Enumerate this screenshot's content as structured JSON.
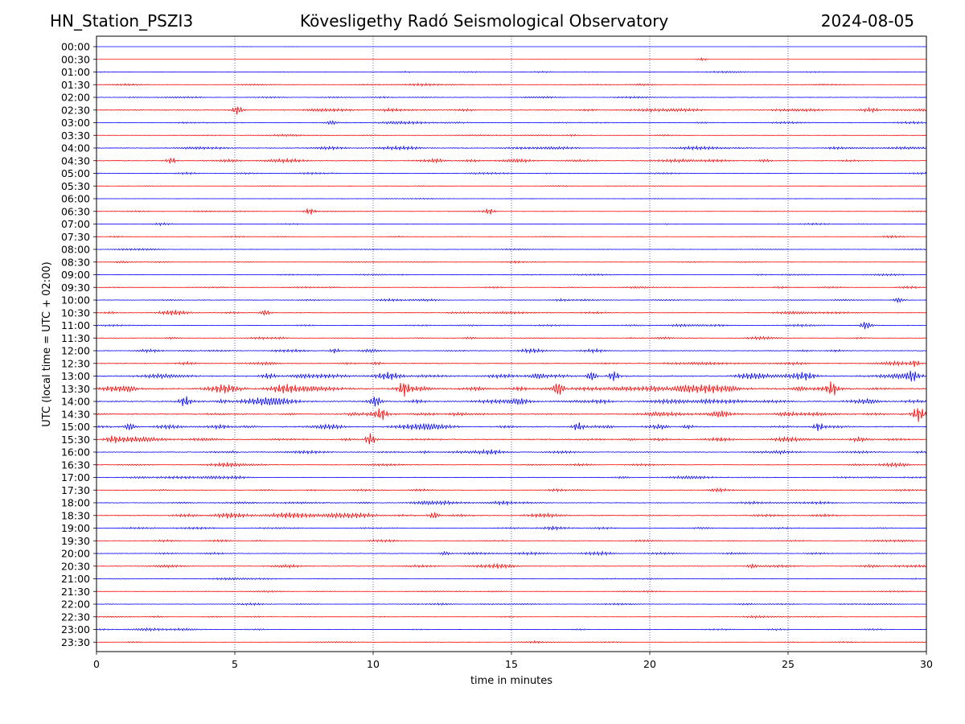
{
  "header": {
    "station": "HN_Station_PSZI3",
    "observatory": "Kövesligethy Radó Seismological Observatory",
    "date": "2024-08-05"
  },
  "chart_data": {
    "type": "line",
    "title": "Kövesligethy Radó Seismological Observatory",
    "xlabel": "time in minutes",
    "ylabel": "UTC (local time = UTC + 02:00)",
    "xlim": [
      0,
      30
    ],
    "xticks": [
      0,
      5,
      10,
      15,
      20,
      25,
      30
    ],
    "grid": "vertical dotted lines at 5-minute ticks",
    "series_colors": [
      "#0000ff",
      "#ff0000"
    ],
    "rows": [
      "00:00",
      "00:30",
      "01:00",
      "01:30",
      "02:00",
      "02:30",
      "03:00",
      "03:30",
      "04:00",
      "04:30",
      "05:00",
      "05:30",
      "06:00",
      "06:30",
      "07:00",
      "07:30",
      "08:00",
      "08:30",
      "09:00",
      "09:30",
      "10:00",
      "10:30",
      "11:00",
      "11:30",
      "12:00",
      "12:30",
      "13:00",
      "13:30",
      "14:00",
      "14:30",
      "15:00",
      "15:30",
      "16:00",
      "16:30",
      "17:00",
      "17:30",
      "18:00",
      "18:30",
      "19:00",
      "19:30",
      "20:00",
      "20:30",
      "21:00",
      "21:30",
      "22:00",
      "22:30",
      "23:00",
      "23:30"
    ],
    "activity": [
      0.05,
      0.08,
      0.55,
      0.7,
      0.8,
      1.3,
      0.9,
      0.65,
      1.2,
      1.2,
      0.75,
      0.45,
      0.3,
      0.5,
      0.6,
      0.55,
      0.6,
      0.6,
      0.7,
      0.85,
      0.9,
      1.0,
      0.9,
      1.0,
      1.1,
      1.3,
      1.9,
      2.3,
      1.9,
      1.8,
      1.7,
      1.6,
      1.2,
      1.0,
      1.0,
      1.0,
      1.1,
      1.4,
      0.9,
      0.9,
      1.0,
      1.0,
      0.6,
      0.7,
      0.8,
      0.65,
      0.7,
      0.6
    ],
    "events": [
      {
        "row": 1,
        "t": 21.9,
        "amp": 2
      },
      {
        "row": 5,
        "t": 5.1,
        "amp": 6
      },
      {
        "row": 6,
        "t": 8.5,
        "amp": 3
      },
      {
        "row": 9,
        "t": 2.7,
        "amp": 4
      },
      {
        "row": 13,
        "t": 7.7,
        "amp": 4
      },
      {
        "row": 13,
        "t": 14.2,
        "amp": 4
      },
      {
        "row": 20,
        "t": 29.0,
        "amp": 4
      },
      {
        "row": 21,
        "t": 6.1,
        "amp": 4
      },
      {
        "row": 22,
        "t": 27.8,
        "amp": 5
      },
      {
        "row": 24,
        "t": 8.6,
        "amp": 3
      },
      {
        "row": 25,
        "t": 29.6,
        "amp": 4
      },
      {
        "row": 26,
        "t": 17.9,
        "amp": 7
      },
      {
        "row": 26,
        "t": 18.7,
        "amp": 7
      },
      {
        "row": 26,
        "t": 29.5,
        "amp": 5
      },
      {
        "row": 27,
        "t": 11.1,
        "amp": 8
      },
      {
        "row": 27,
        "t": 16.7,
        "amp": 11
      },
      {
        "row": 27,
        "t": 26.6,
        "amp": 8
      },
      {
        "row": 28,
        "t": 10.1,
        "amp": 6
      },
      {
        "row": 28,
        "t": 3.2,
        "amp": 6
      },
      {
        "row": 29,
        "t": 10.3,
        "amp": 6
      },
      {
        "row": 29,
        "t": 29.7,
        "amp": 8
      },
      {
        "row": 30,
        "t": 1.2,
        "amp": 6
      },
      {
        "row": 30,
        "t": 17.4,
        "amp": 5
      },
      {
        "row": 30,
        "t": 26.1,
        "amp": 5
      },
      {
        "row": 31,
        "t": 9.9,
        "amp": 8
      },
      {
        "row": 37,
        "t": 12.2,
        "amp": 5
      },
      {
        "row": 40,
        "t": 12.6,
        "amp": 3
      },
      {
        "row": 41,
        "t": 23.7,
        "amp": 3
      }
    ]
  }
}
